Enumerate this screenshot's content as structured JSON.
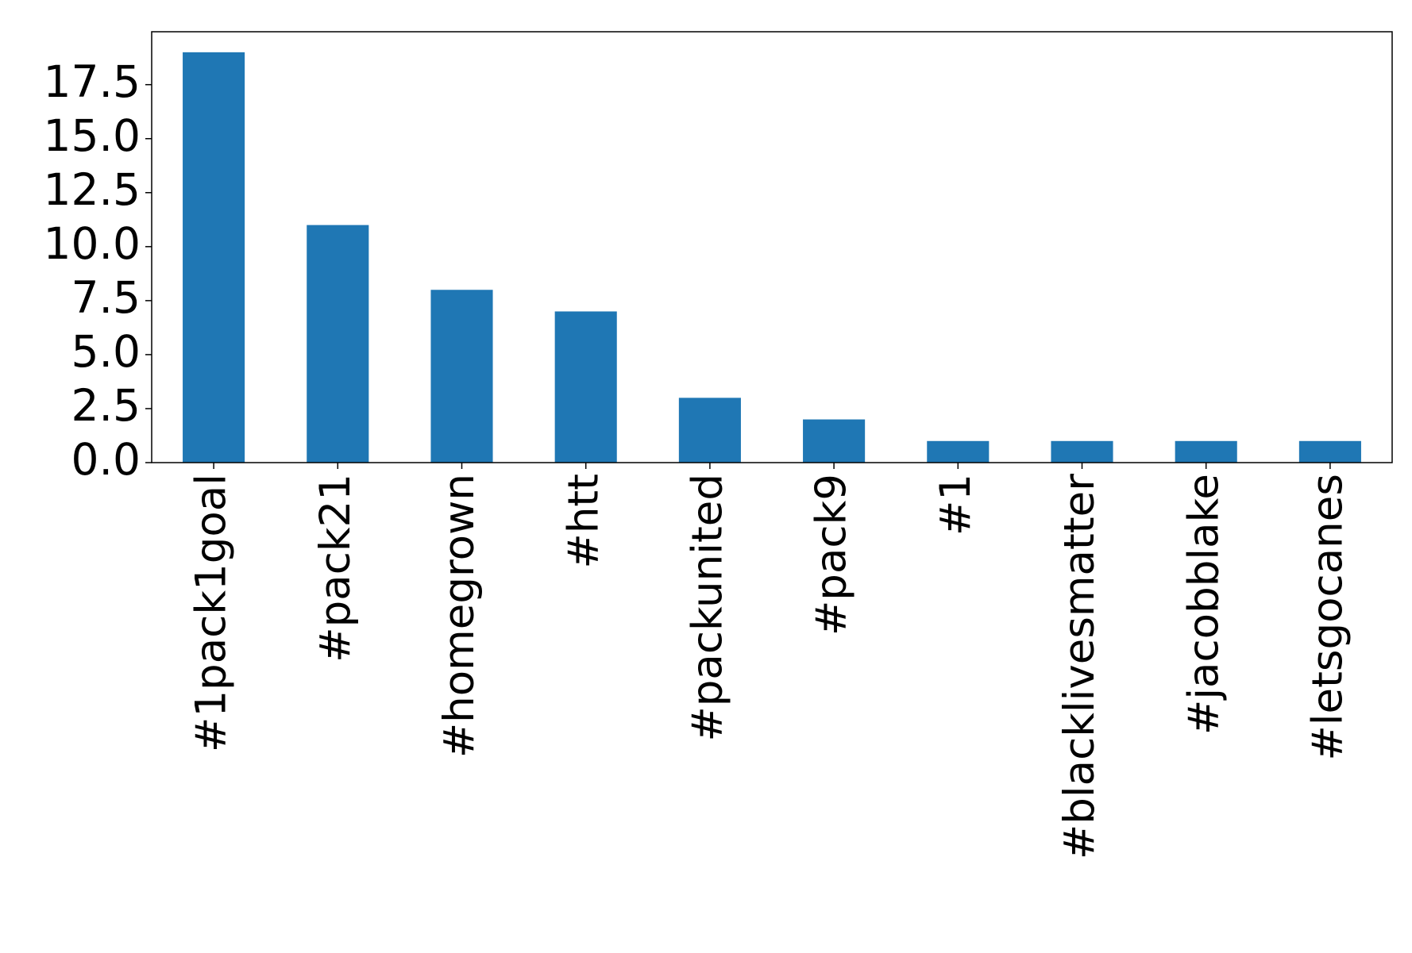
{
  "chart_data": {
    "type": "bar",
    "categories": [
      "#1pack1goal",
      "#pack21",
      "#homegrown",
      "#htt",
      "#packunited",
      "#pack9",
      "#1",
      "#blacklivesmatter",
      "#jacobblake",
      "#letsgocanes"
    ],
    "values": [
      19,
      11,
      8,
      7,
      3,
      2,
      1,
      1,
      1,
      1
    ],
    "color": "#1f77b4",
    "ylim": [
      0,
      19.95
    ],
    "yticks": [
      {
        "value": 0,
        "label": "0.0"
      },
      {
        "value": 2.5,
        "label": "2.5"
      },
      {
        "value": 5,
        "label": "5.0"
      },
      {
        "value": 7.5,
        "label": "7.5"
      },
      {
        "value": 10,
        "label": "10.0"
      },
      {
        "value": 12.5,
        "label": "12.5"
      },
      {
        "value": 15,
        "label": "15.0"
      },
      {
        "value": 17.5,
        "label": "17.5"
      }
    ],
    "grid": false
  }
}
